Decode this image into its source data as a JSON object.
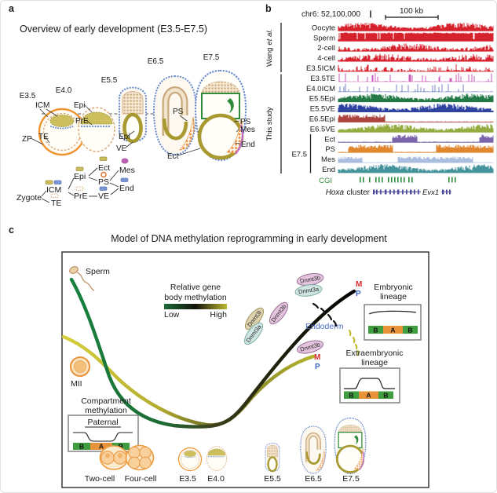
{
  "panel_a": {
    "label": "a",
    "title": "Overview of early development (E3.5-E7.5)",
    "stages": [
      "E3.5",
      "E4.0",
      "E5.5",
      "E6.5",
      "E7.5"
    ],
    "ann": {
      "icm": "ICM",
      "epi_e40": "Epi",
      "pre": "PrE",
      "zp": "ZP",
      "te": "TE",
      "ps_e65": "PS",
      "epi_e55": "Epi",
      "ve_e55": "VE",
      "ect_e75": "Ect",
      "ps_e75": "PS",
      "mes_e75": "Mes",
      "end_e75": "End"
    },
    "lineage": {
      "zygote": "Zygote",
      "icm": "ICM",
      "te": "TE",
      "epi": "Epi",
      "pre": "PrE",
      "ect": "Ect",
      "ps": "PS",
      "ve": "VE",
      "mes": "Mes",
      "end": "End"
    }
  },
  "panel_b": {
    "label": "b",
    "locus": "chr6: 52,100,000",
    "scale_bar": "100 kb",
    "group_wang_prefix": "Wang",
    "group_wang_italic": "et al.",
    "group_study": "This study",
    "e75_bracket": "E7.5",
    "tracks": [
      {
        "name": "Oocyte",
        "color": "#d6222c",
        "profile": "dense"
      },
      {
        "name": "Sperm",
        "color": "#d6222c",
        "profile": "solid"
      },
      {
        "name": "2-cell",
        "color": "#d6222c",
        "profile": "dense2"
      },
      {
        "name": "4-cell",
        "color": "#d6222c",
        "profile": "dense2"
      },
      {
        "name": "E3.5ICM",
        "color": "#d6222c",
        "profile": "low"
      },
      {
        "name": "E3.5TE",
        "color": "#c85ab8",
        "profile": "sparse"
      },
      {
        "name": "E4.0ICM",
        "color": "#7486c8",
        "profile": "sparse"
      },
      {
        "name": "E5.5Epi",
        "color": "#237a46",
        "profile": "dense"
      },
      {
        "name": "E5.5VE",
        "color": "#2e42a0",
        "profile": "dense"
      },
      {
        "name": "E6.5Epi",
        "color": "#ac4540",
        "profile": "blocky"
      },
      {
        "name": "E6.5VE",
        "color": "#94ab40",
        "profile": "dense"
      },
      {
        "name": "Ect",
        "color": "#7a64ac",
        "profile": "blocky"
      },
      {
        "name": "PS",
        "color": "#e0862f",
        "profile": "blocky"
      },
      {
        "name": "Mes",
        "color": "#aabdde",
        "profile": "blocky2"
      },
      {
        "name": "End",
        "color": "#45939b",
        "profile": "dense"
      }
    ],
    "cgi_label": "CGI",
    "hoxa_italic": "Hoxa",
    "hoxa_rest": "cluster",
    "evx1": "Evx1"
  },
  "panel_c": {
    "label": "c",
    "title": "Model of DNA methylation reprogramming in early development",
    "sperm": "Sperm",
    "mii": "MII",
    "meth_legend": {
      "line1": "Relative gene",
      "line2": "body methylation",
      "low": "Low",
      "high": "High"
    },
    "dnmt3a": "Dnmt3a",
    "dnmt3b": "Dnmt3b",
    "dnmt3l": "Dnmt3l",
    "m": "M",
    "p": "P",
    "embryonic_line1": "Embryonic",
    "embryonic_line2": "lineage",
    "endoderm": "Endoderm",
    "extraembryonic_line1": "Extraembryonic",
    "extraembryonic_line2": "lineage",
    "compartment_line1": "Compartment",
    "compartment_line2": "methylation",
    "paternal": "Paternal",
    "bab": [
      "B",
      "A",
      "B"
    ],
    "stage_labels": [
      "Two-cell",
      "Four-cell",
      "E3.5",
      "E4.0",
      "E5.5",
      "E6.5",
      "E7.5"
    ]
  },
  "colors": {
    "m_red": "#d62b2b",
    "p_blue": "#3b66c4",
    "endoderm_blue": "#4a6bc8",
    "cgi_green": "#2e8b3a",
    "gene_blue": "#4a4aa0",
    "meth_low": "#1d6b38",
    "meth_mid": "#111108",
    "meth_high": "#bdb92f",
    "bab_green": "#3f9e3f",
    "bab_orange": "#e8923a"
  }
}
